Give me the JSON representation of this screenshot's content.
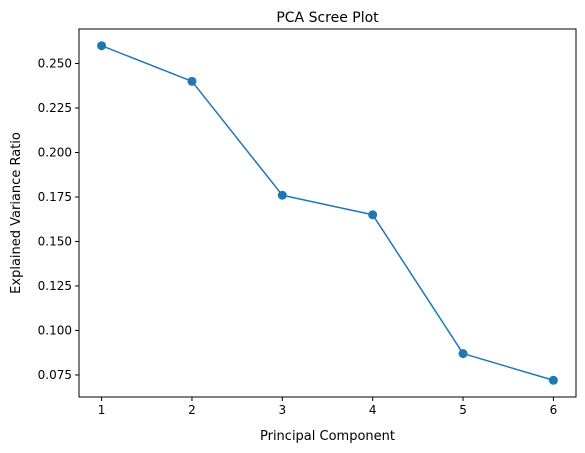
{
  "chart_data": {
    "type": "line",
    "title": "PCA Scree Plot",
    "xlabel": "Principal Component",
    "ylabel": "Explained Variance Ratio",
    "x": [
      1,
      2,
      3,
      4,
      5,
      6
    ],
    "y": [
      0.26,
      0.24,
      0.176,
      0.165,
      0.087,
      0.072
    ],
    "xlim": [
      0.75,
      6.25
    ],
    "ylim": [
      0.0626,
      0.2694
    ],
    "x_ticks": [
      "1",
      "2",
      "3",
      "4",
      "5",
      "6"
    ],
    "x_tick_values": [
      1,
      2,
      3,
      4,
      5,
      6
    ],
    "y_ticks": [
      "0.075",
      "0.100",
      "0.125",
      "0.150",
      "0.175",
      "0.200",
      "0.225",
      "0.250"
    ],
    "y_tick_values": [
      0.075,
      0.1,
      0.125,
      0.15,
      0.175,
      0.2,
      0.225,
      0.25
    ],
    "grid": false,
    "marker": "circle",
    "line_color": "#1f77b4"
  }
}
